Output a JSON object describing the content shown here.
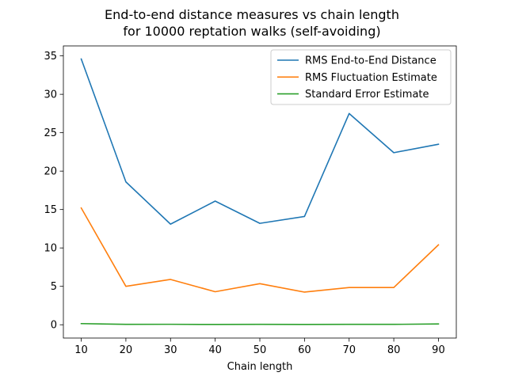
{
  "chart_data": {
    "type": "line",
    "title_lines": [
      "End-to-end distance measures vs chain length",
      "for 10000 reptation walks (self-avoiding)"
    ],
    "xlabel": "Chain length",
    "ylabel": "",
    "x": [
      10,
      20,
      30,
      40,
      50,
      60,
      70,
      80,
      90
    ],
    "xlim": [
      6.0,
      94.0
    ],
    "ylim": [
      -1.73,
      36.3
    ],
    "xticks": [
      10,
      20,
      30,
      40,
      50,
      60,
      70,
      80,
      90
    ],
    "yticks": [
      0,
      5,
      10,
      15,
      20,
      25,
      30,
      35
    ],
    "grid": false,
    "legend_position": "top-right",
    "series": [
      {
        "name": "RMS End-to-End Distance",
        "color": "#1f77b4",
        "values": [
          34.6,
          18.6,
          13.1,
          16.1,
          13.2,
          14.1,
          27.5,
          22.4,
          23.5
        ]
      },
      {
        "name": "RMS Fluctuation Estimate",
        "color": "#ff7f0e",
        "values": [
          15.2,
          5.0,
          5.9,
          4.3,
          5.35,
          4.25,
          4.85,
          4.85,
          10.4
        ]
      },
      {
        "name": "Standard Error Estimate",
        "color": "#2ca02c",
        "values": [
          0.15,
          0.05,
          0.06,
          0.04,
          0.05,
          0.04,
          0.05,
          0.05,
          0.1
        ]
      }
    ]
  }
}
